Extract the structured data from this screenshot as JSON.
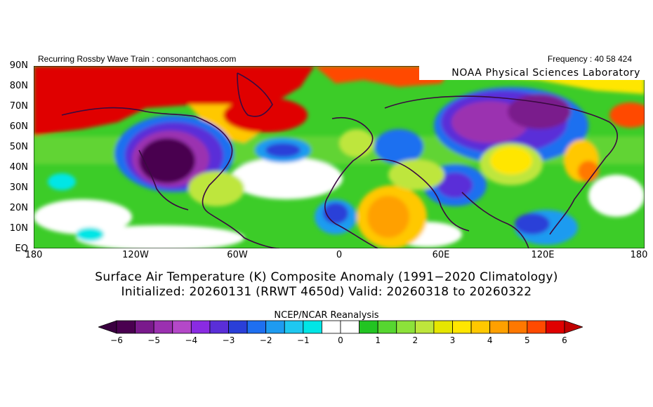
{
  "header": {
    "left": "Recurring Rossby Wave Train : consonantchaos.com",
    "right": "Frequency : 40 58 424"
  },
  "map": {
    "overlay_label": "NOAA Physical Sciences Laboratory",
    "lat_labels": [
      "90N",
      "80N",
      "70N",
      "60N",
      "50N",
      "40N",
      "30N",
      "20N",
      "10N",
      "EQ"
    ],
    "lon_labels": [
      "180",
      "120W",
      "60W",
      "0",
      "60E",
      "120E",
      "180"
    ]
  },
  "title": {
    "line1": "Surface Air Temperature (K) Composite Anomaly (1991−2020 Climatology)",
    "line2": "Initialized: 20260131 (RRWT 4650d) Valid: 20260318 to 20260322"
  },
  "colorbar": {
    "source_label": "NCEP/NCAR Reanalysis",
    "tick_labels": [
      "−6",
      "−5",
      "−4",
      "−3",
      "−2",
      "−1",
      "0",
      "1",
      "2",
      "3",
      "4",
      "5",
      "6"
    ],
    "colors": [
      "#4a0050",
      "#7a1a8c",
      "#9b30b0",
      "#b448c8",
      "#8a2be2",
      "#5a2ed8",
      "#2a3fd8",
      "#1e6ff0",
      "#1e9bf0",
      "#1ec8f0",
      "#00e6e6",
      "#ffffff",
      "#ffffff",
      "#22c422",
      "#56d630",
      "#8ce23a",
      "#bee63c",
      "#e6e600",
      "#ffe600",
      "#ffc800",
      "#ffa000",
      "#ff7800",
      "#ff4a00",
      "#e00000"
    ],
    "min_color": "#3a0040",
    "max_color": "#c00000"
  }
}
